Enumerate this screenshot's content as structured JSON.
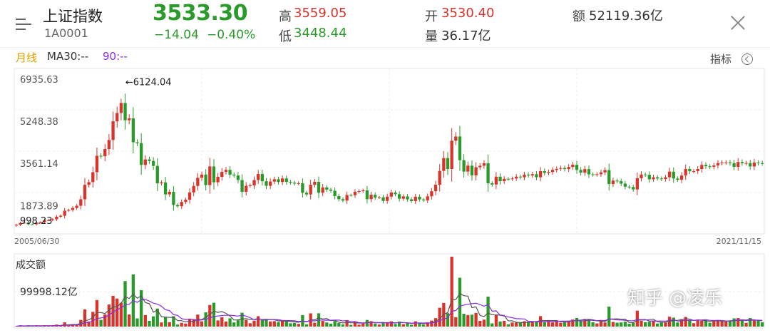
{
  "header": {
    "index_name": "上证指数",
    "index_code": "1A0001",
    "price": "3533.30",
    "change": "−14.04",
    "change_pct": "−0.40%",
    "high_label": "高",
    "high": "3559.05",
    "low_label": "低",
    "low": "3448.44",
    "open_label": "开",
    "open": "3530.40",
    "volume_label": "量",
    "volume": "36.17亿",
    "amount_label": "额",
    "amount": "52119.36亿"
  },
  "toolbar": {
    "period": "月线",
    "ma30": "MA30:--",
    "ma90": "90:--",
    "indicator_label": "指标"
  },
  "chart_data": [
    {
      "type": "candlestick",
      "title": "上证指数 月线",
      "y_ticks": [
        "6935.63",
        "5248.38",
        "3561.14",
        "1873.89",
        "998.23"
      ],
      "ylim": [
        998.23,
        6935.63
      ],
      "x_start_label": "2005/06/30",
      "x_end_label": "2021/11/15",
      "max_annotation": "←6124.04",
      "max_value": 6124.04,
      "min_value": 998.23,
      "grid": true,
      "colors": {
        "up": "#d9342b",
        "down": "#2a9a2a"
      },
      "series": [
        {
          "name": "close",
          "values": [
            1080,
            1150,
            1162,
            1100,
            1099,
            1161,
            1180,
            1258,
            1265,
            1299,
            1400,
            1440,
            1641,
            1672,
            1750,
            1838,
            2099,
            2675,
            2786,
            3183,
            3841,
            3821,
            4109,
            4471,
            5218,
            5552,
            5954,
            5261,
            5338,
            4383,
            4348,
            3473,
            3693,
            3630,
            3433,
            2736,
            2775,
            2294,
            2397,
            1871,
            1820,
            1990,
            2082,
            2373,
            2632,
            2959,
            3088,
            2667,
            3412,
            2780,
            2995,
            3195,
            3277,
            3087,
            3051,
            2870,
            2398,
            2638,
            2656,
            2868,
            3109,
            2820,
            2637,
            2808,
            2900,
            2791,
            2932,
            2795,
            2762,
            2728,
            2743,
            2359,
            2292,
            2678,
            2797,
            2359,
            2573,
            2486,
            2439,
            2225,
            2103,
            2047,
            2269,
            2262,
            2396,
            2428,
            2454,
            2103,
            2278,
            2166,
            2174,
            2033,
            2204,
            2366,
            2301,
            2123,
            2213,
            2096,
            2026,
            2201,
            2091,
            2056,
            2217,
            2420,
            2683,
            3235,
            3748,
            3310,
            4442,
            4612,
            3663,
            3206,
            3444,
            3053,
            3382,
            3440,
            3540,
            2738,
            2688,
            3003,
            2822,
            2917,
            2916,
            2932,
            3004,
            2979,
            3085,
            3052,
            3104,
            2980,
            3223,
            3154,
            3192,
            3273,
            3317,
            3349,
            3307,
            3393,
            3480,
            3273,
            3166,
            3307,
            3098,
            3086,
            3099,
            3176,
            3266,
            2709,
            2846,
            2822,
            2725,
            2602,
            2588,
            2493,
            2940,
            3090,
            3078,
            2898,
            2979,
            2932,
            2905,
            2978,
            3204,
            2929,
            2880,
            3050,
            3310,
            3218,
            3225,
            3310,
            3473,
            3418,
            3397,
            3451,
            3547,
            3568,
            3574,
            3542,
            3397,
            3591,
            3544,
            3547,
            3412,
            3567,
            3544,
            3533
          ],
          "low": 998.23,
          "high": 6124.04
        }
      ]
    },
    {
      "type": "bar",
      "title": "成交额",
      "y_tick": "99998.12亿",
      "series": [
        {
          "name": "成交额",
          "values": []
        },
        {
          "name": "MA30"
        },
        {
          "name": "90"
        }
      ]
    }
  ],
  "watermark": "知乎 @凌乐"
}
